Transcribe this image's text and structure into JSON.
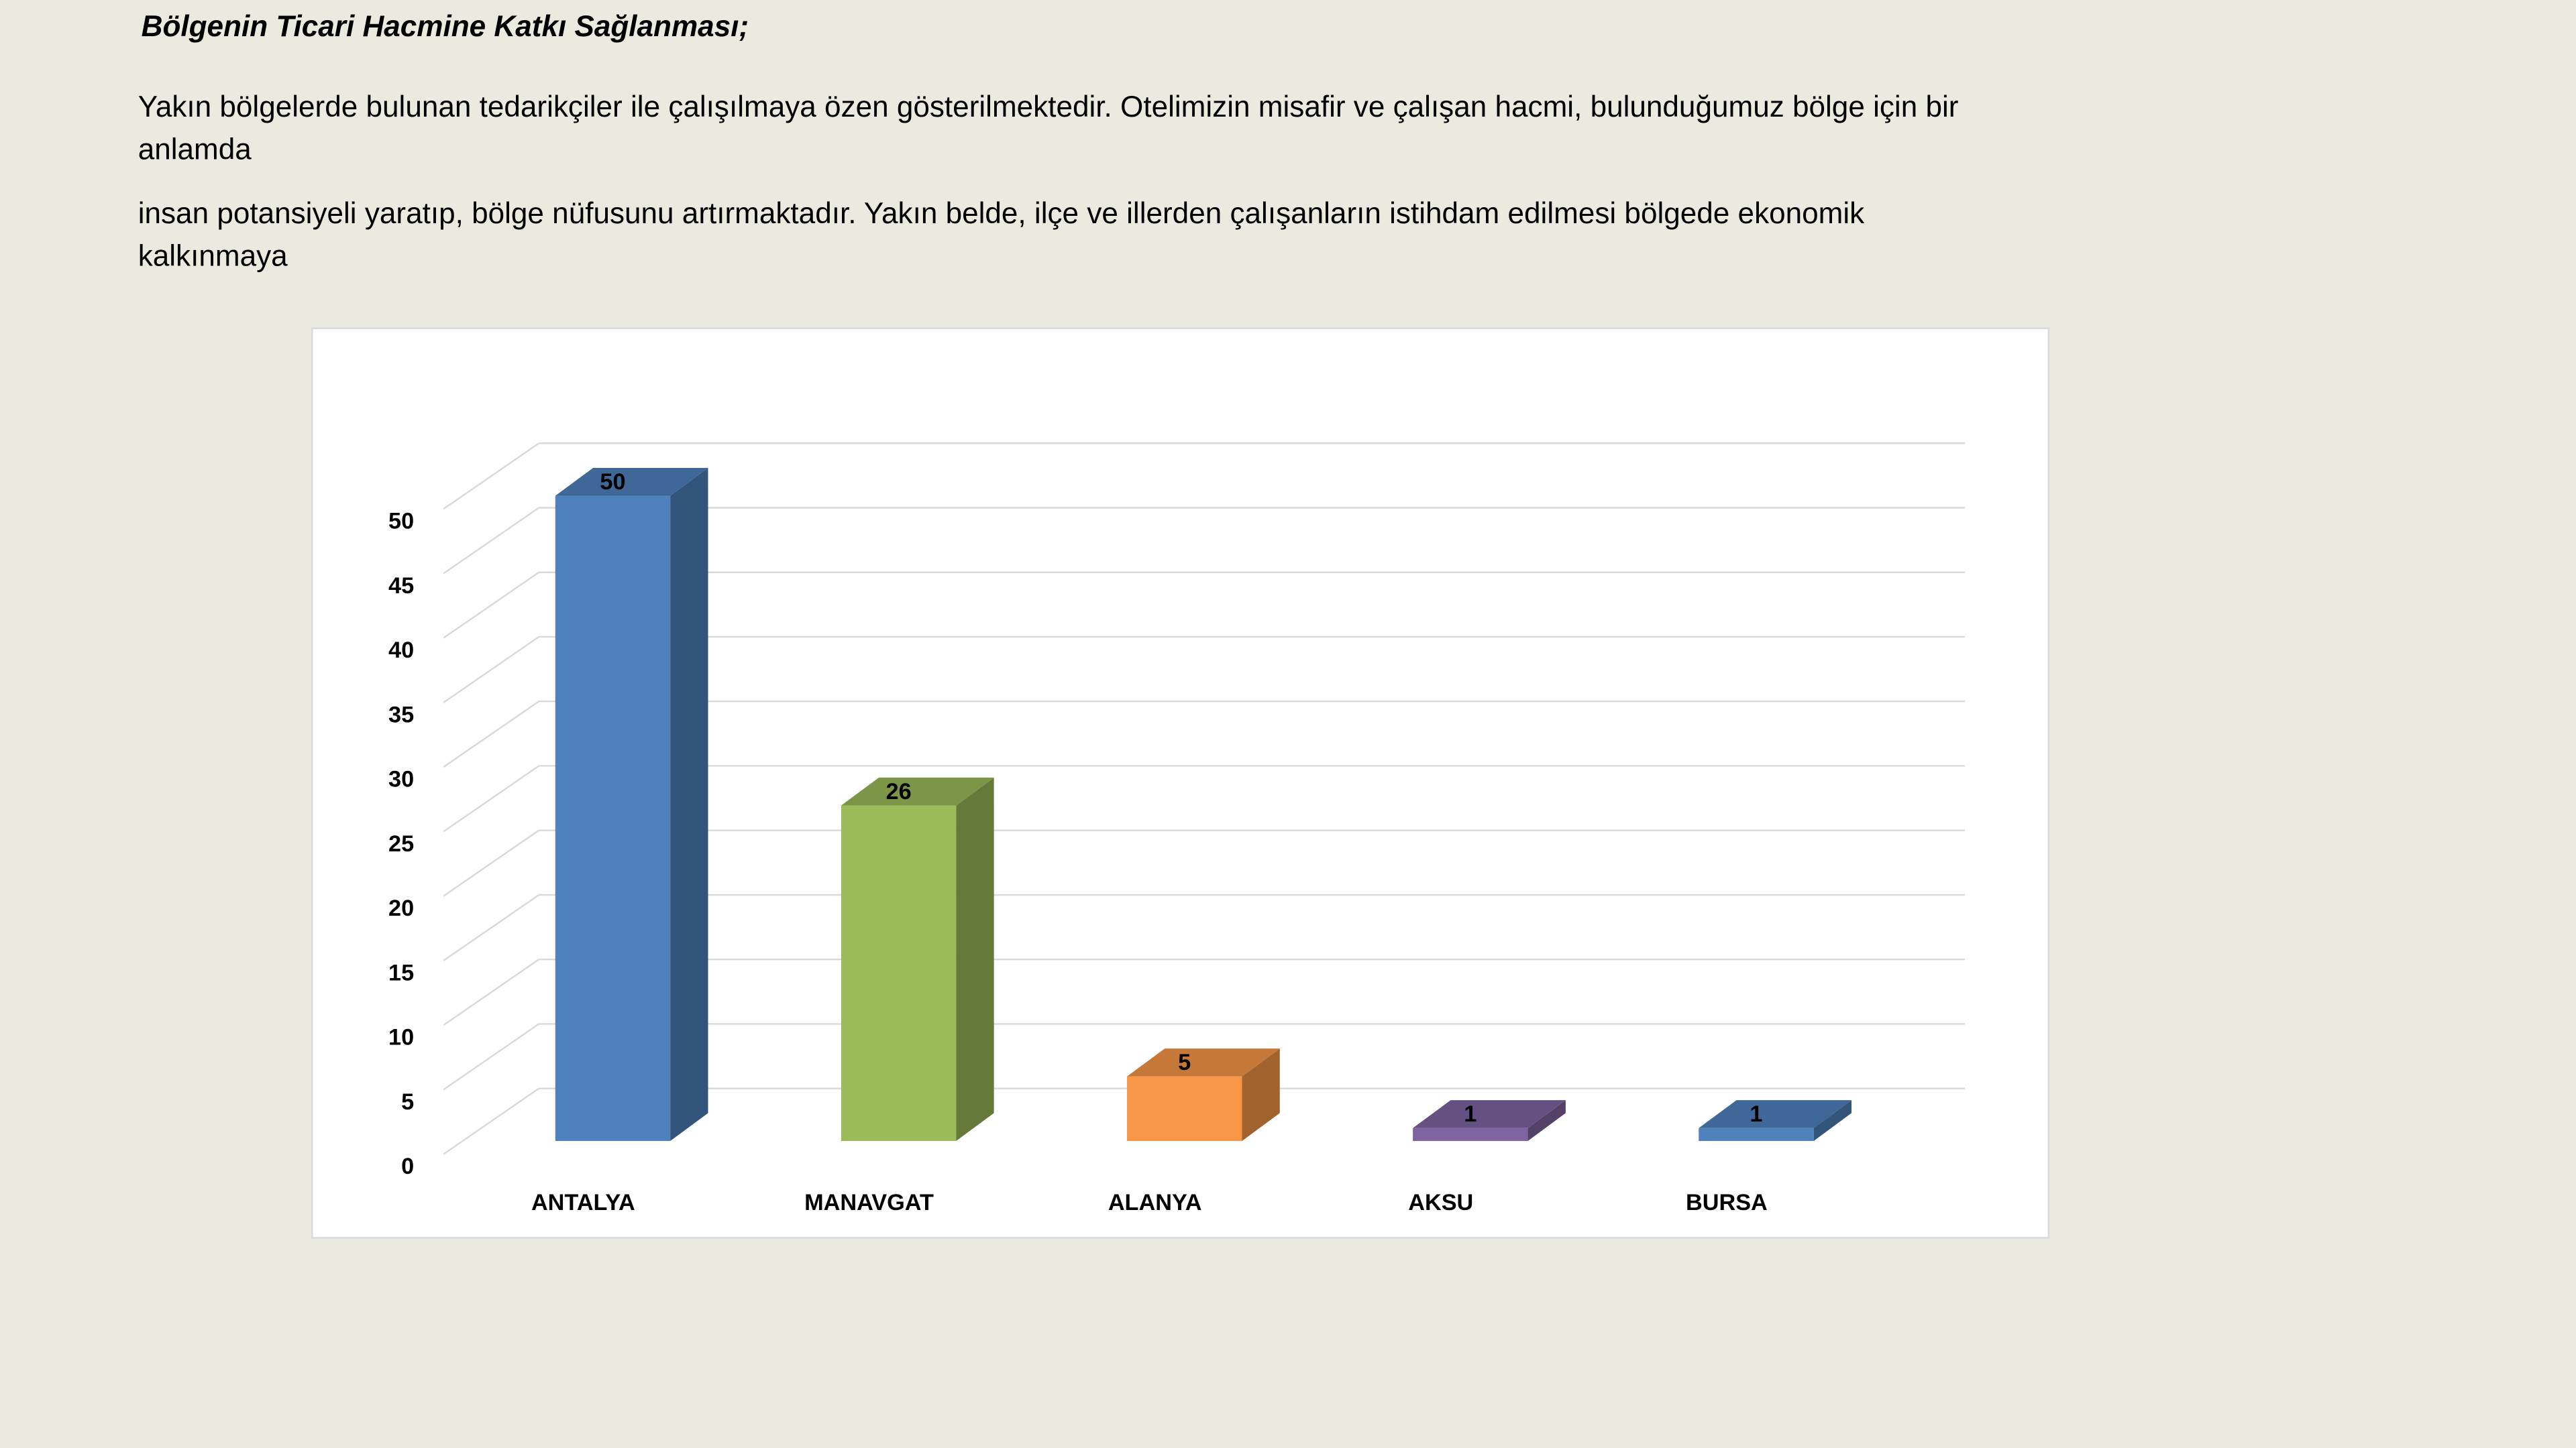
{
  "heading": "Bölgenin Ticari Hacmine Katkı Sağlanması;",
  "paragraphs": [
    "Yakın bölgelerde bulunan tedarikçiler ile çalışılmaya özen gösterilmektedir. Otelimizin misafir ve çalışan hacmi,  bulunduğumuz bölge için bir",
    "anlamda",
    "insan potansiyeli yaratıp, bölge nüfusunu artırmaktadır. Yakın belde, ilçe ve illerden    çalışanların istihdam edilmesi bölgede ekonomik",
    "kalkınmaya"
  ],
  "chart_data": {
    "type": "bar3d",
    "categories": [
      "ANTALYA",
      "MANAVGAT",
      "ALANYA",
      "AKSU",
      "BURSA"
    ],
    "values": [
      50,
      26,
      5,
      1,
      1
    ],
    "colors": [
      "#4f81bd",
      "#9bbb59",
      "#f79646",
      "#8064a2",
      "#4f81bd"
    ],
    "ylim": [
      0,
      50
    ],
    "yticks": [
      0,
      5,
      10,
      15,
      20,
      25,
      30,
      35,
      40,
      45,
      50
    ],
    "grid": true
  }
}
